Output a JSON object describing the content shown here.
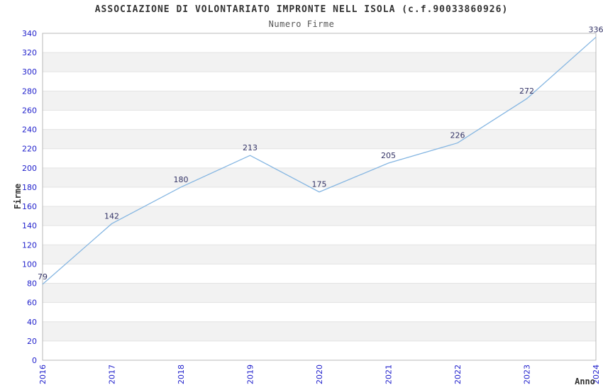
{
  "chart_data": {
    "type": "line",
    "title": "ASSOCIAZIONE DI VOLONTARIATO IMPRONTE NELL ISOLA (c.f.90033860926)",
    "subtitle": "Numero Firme",
    "xlabel": "Anno",
    "ylabel": "Firme",
    "categories": [
      "2016",
      "2017",
      "2018",
      "2019",
      "2020",
      "2021",
      "2022",
      "2023",
      "2024"
    ],
    "series": [
      {
        "name": "Numero Firme",
        "values": [
          79,
          142,
          180,
          213,
          175,
          205,
          226,
          272,
          336
        ]
      }
    ],
    "point_labels": [
      "79",
      "142",
      "180",
      "213",
      "175",
      "205",
      "226",
      "272",
      "336"
    ],
    "ylim": [
      0,
      340
    ],
    "yticks": [
      0,
      20,
      40,
      60,
      80,
      100,
      120,
      140,
      160,
      180,
      200,
      220,
      240,
      260,
      280,
      300,
      320,
      340
    ],
    "grid": "horizontal alternating bands every 20 units",
    "legend_position": "none",
    "colors": {
      "line": "#85b6e2",
      "tick_label": "#2222cc",
      "data_label": "#333366",
      "band_alt": "#f2f2f2",
      "band_main": "#ffffff",
      "gridline": "#e3e3e3",
      "border": "#b8b8b8",
      "title": "#333333",
      "subtitle": "#555555",
      "background": "#ffffff"
    }
  }
}
